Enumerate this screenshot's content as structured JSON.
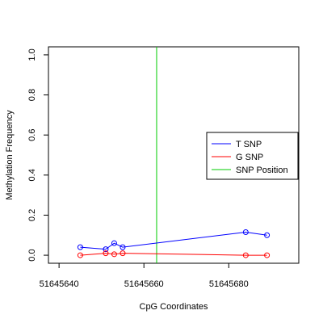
{
  "chart_data": {
    "type": "line",
    "title": "",
    "xlabel": "CpG Coordinates",
    "ylabel": "Methylation Frequency",
    "xlim": [
      51645637.5,
      51645696.5
    ],
    "ylim": [
      -0.04,
      1.04
    ],
    "x_ticks": [
      51645640,
      51645660,
      51645680
    ],
    "x_tick_labels": [
      "51645640",
      "51645660",
      "51645680"
    ],
    "y_ticks": [
      0.0,
      0.2,
      0.4,
      0.6,
      0.8,
      1.0
    ],
    "y_tick_labels": [
      "0.0",
      "0.2",
      "0.4",
      "0.6",
      "0.8",
      "1.0"
    ],
    "grid": false,
    "legend_position": "right",
    "series": [
      {
        "name": "T SNP",
        "color": "#0000ff",
        "marker": "open-circle",
        "x": [
          51645645,
          51645651,
          51645653,
          51645655,
          51645684,
          51645689
        ],
        "y": [
          0.04,
          0.03,
          0.06,
          0.04,
          0.115,
          0.1
        ]
      },
      {
        "name": "G SNP",
        "color": "#ff0000",
        "marker": "open-circle",
        "x": [
          51645645,
          51645651,
          51645653,
          51645655,
          51645684,
          51645689
        ],
        "y": [
          0.0,
          0.01,
          0.005,
          0.01,
          0.0,
          0.0
        ]
      }
    ],
    "vertical_lines": [
      {
        "name": "SNP Position",
        "color": "#00cc00",
        "x": 51645663
      }
    ],
    "legend": [
      {
        "label": "T SNP",
        "color": "#0000ff"
      },
      {
        "label": "G SNP",
        "color": "#ff0000"
      },
      {
        "label": "SNP Position",
        "color": "#00cc00"
      }
    ]
  }
}
